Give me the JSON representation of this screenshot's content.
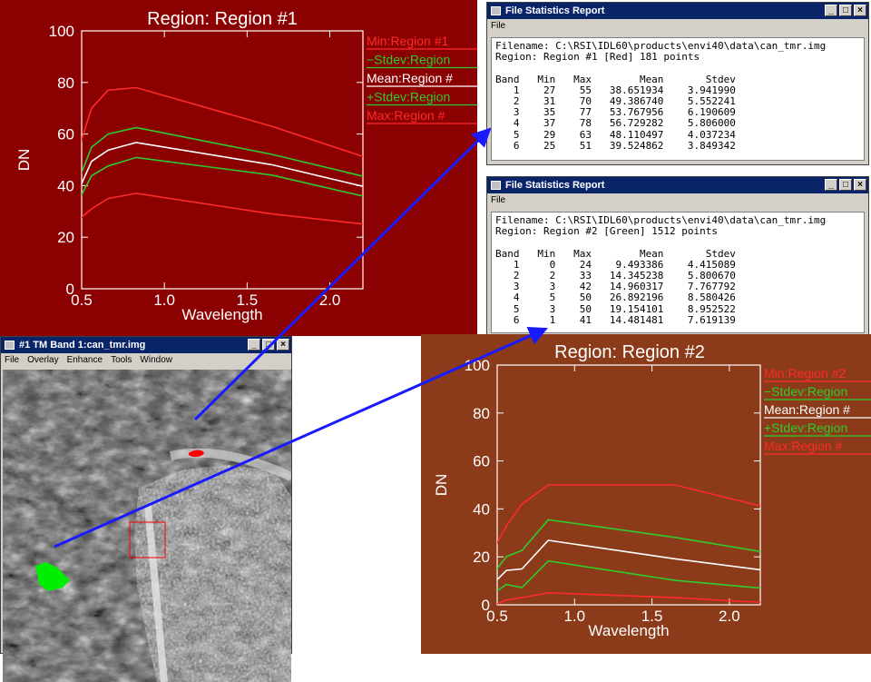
{
  "plot1": {
    "title": "Region: Region #1",
    "xlabel": "Wavelength",
    "ylabel": "DN",
    "bg": "#8b0000",
    "legend": [
      {
        "label": "Min:Region #1",
        "color": "#ff2a2a"
      },
      {
        "label": "−Stdev:Region",
        "color": "#2ecc2e"
      },
      {
        "label": "Mean:Region #",
        "color": "#ffffff"
      },
      {
        "label": "+Stdev:Region",
        "color": "#2ecc2e"
      },
      {
        "label": "Max:Region #",
        "color": "#ff2a2a"
      }
    ],
    "yticks": [
      "0",
      "20",
      "40",
      "60",
      "80",
      "100"
    ],
    "xticks": [
      "0.5",
      "1.0",
      "1.5",
      "2.0"
    ]
  },
  "plot2": {
    "title": "Region: Region #2",
    "xlabel": "Wavelength",
    "ylabel": "DN",
    "bg": "#8b3a1a",
    "legend": [
      {
        "label": "Min:Region #2",
        "color": "#ff2a2a"
      },
      {
        "label": "−Stdev:Region",
        "color": "#2ecc2e"
      },
      {
        "label": "Mean:Region #",
        "color": "#ffffff"
      },
      {
        "label": "+Stdev:Region",
        "color": "#2ecc2e"
      },
      {
        "label": "Max:Region #",
        "color": "#ff2a2a"
      }
    ],
    "yticks": [
      "0",
      "20",
      "40",
      "60",
      "80",
      "100"
    ],
    "xticks": [
      "0.5",
      "1.0",
      "1.5",
      "2.0"
    ]
  },
  "chart_data": [
    {
      "type": "line",
      "title": "Region: Region #1",
      "xlabel": "Wavelength",
      "ylabel": "DN",
      "xlim": [
        0.5,
        2.2
      ],
      "ylim": [
        0,
        100
      ],
      "x": [
        0.485,
        0.56,
        0.66,
        0.83,
        1.65,
        2.215
      ],
      "series": [
        {
          "name": "Min:Region #1",
          "color": "#ff2a2a",
          "values": [
            27,
            31,
            35,
            37,
            29,
            25
          ]
        },
        {
          "name": "−Stdev:Region",
          "color": "#2ecc2e",
          "values": [
            34.7,
            43.8,
            47.6,
            50.9,
            44.1,
            35.7
          ]
        },
        {
          "name": "Mean:Region #",
          "color": "#ffffff",
          "values": [
            38.65,
            49.39,
            53.77,
            56.73,
            48.11,
            39.52
          ]
        },
        {
          "name": "+Stdev:Region",
          "color": "#2ecc2e",
          "values": [
            42.6,
            54.9,
            60.0,
            62.5,
            52.1,
            43.4
          ]
        },
        {
          "name": "Max:Region #",
          "color": "#ff2a2a",
          "values": [
            55,
            70,
            77,
            78,
            63,
            51
          ]
        }
      ]
    },
    {
      "type": "line",
      "title": "Region: Region #2",
      "xlabel": "Wavelength",
      "ylabel": "DN",
      "xlim": [
        0.5,
        2.2
      ],
      "ylim": [
        0,
        100
      ],
      "x": [
        0.485,
        0.56,
        0.66,
        0.83,
        1.65,
        2.215
      ],
      "series": [
        {
          "name": "Min:Region #2",
          "color": "#ff2a2a",
          "values": [
            0,
            2,
            3,
            5,
            3,
            1
          ]
        },
        {
          "name": "−Stdev:Region",
          "color": "#2ecc2e",
          "values": [
            5.1,
            8.5,
            7.2,
            18.3,
            10.2,
            6.9
          ]
        },
        {
          "name": "Mean:Region #",
          "color": "#ffffff",
          "values": [
            9.49,
            14.35,
            14.96,
            26.89,
            19.15,
            14.48
          ]
        },
        {
          "name": "+Stdev:Region",
          "color": "#2ecc2e",
          "values": [
            13.9,
            20.1,
            22.7,
            35.5,
            28.1,
            22.1
          ]
        },
        {
          "name": "Max:Region #",
          "color": "#ff2a2a",
          "values": [
            24,
            33,
            42,
            50,
            50,
            41
          ]
        }
      ]
    }
  ],
  "report1": {
    "title": "File Statistics Report",
    "menu": "File",
    "text": "Filename: C:\\RSI\\IDL60\\products\\envi40\\data\\can_tmr.img\nRegion: Region #1 [Red] 181 points\n\nBand   Min   Max        Mean       Stdev\n   1    27    55   38.651934    3.941990\n   2    31    70   49.386740    5.552241\n   3    35    77   53.767956    6.190609\n   4    37    78   56.729282    5.806000\n   5    29    63   48.110497    4.037234\n   6    25    51   39.524862    3.849342"
  },
  "report2": {
    "title": "File Statistics Report",
    "menu": "File",
    "text": "Filename: C:\\RSI\\IDL60\\products\\envi40\\data\\can_tmr.img\nRegion: Region #2 [Green] 1512 points\n\nBand   Min   Max        Mean       Stdev\n   1     0    24    9.493386    4.415089\n   2     2    33   14.345238    5.800670\n   3     3    42   14.960317    7.767792\n   4     5    50   26.892196    8.580426\n   5     3    50   19.154101    8.952522\n   6     1    41   14.481481    7.619139"
  },
  "image_window": {
    "title": "#1 TM Band 1:can_tmr.img",
    "menu": [
      "File",
      "Overlay",
      "Enhance",
      "Tools",
      "Window"
    ]
  },
  "window_buttons": {
    "minimize": "_",
    "maximize": "□",
    "close": "×"
  },
  "colors": {
    "arrow": "#1a1aff",
    "region1": "#ff0000",
    "region2": "#00ee00",
    "zoom_box": "#ff0000"
  }
}
